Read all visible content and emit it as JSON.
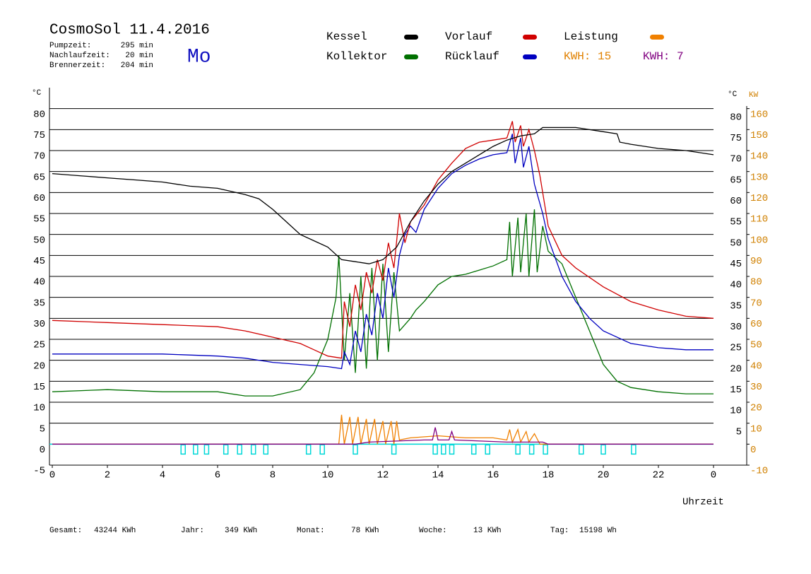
{
  "chart_data": {
    "type": "line",
    "title": "CosmoSol 11.4.2016",
    "weekday": "Mo",
    "weekday_color": "#1010c0",
    "stats": [
      {
        "label": "Pumpzeit:",
        "value": "295 min"
      },
      {
        "label": "Nachlaufzeit:",
        "value": "20 min"
      },
      {
        "label": "Brennerzeit:",
        "value": "204 min"
      }
    ],
    "y_unit": "°C",
    "y2_unit": "KW",
    "x_label": "Uhrzeit",
    "xlim": [
      0,
      24
    ],
    "xticks": [
      0,
      2,
      4,
      6,
      8,
      10,
      12,
      14,
      16,
      18,
      20,
      22,
      {
        "value": 24,
        "label": "0"
      }
    ],
    "ylim": [
      -5,
      85
    ],
    "yticks": [
      -5,
      0,
      5,
      10,
      15,
      20,
      25,
      30,
      35,
      40,
      45,
      50,
      55,
      60,
      65,
      70,
      75,
      80
    ],
    "y2lim": [
      -10,
      170
    ],
    "y2ticks": [
      -10,
      0,
      10,
      20,
      30,
      40,
      50,
      60,
      70,
      80,
      90,
      100,
      110,
      120,
      130,
      140,
      150,
      160
    ],
    "grid": true,
    "series": [
      {
        "name": "Kessel",
        "color": "#000000",
        "x": [
          0,
          1,
          2,
          3,
          4,
          5,
          6,
          7,
          7.5,
          8,
          8.5,
          9,
          9.5,
          10,
          10.5,
          11,
          11.5,
          12,
          12.5,
          13,
          13.5,
          14,
          14.5,
          15,
          15.5,
          16,
          16.5,
          17,
          17.5,
          17.8,
          18,
          19,
          20,
          20.5,
          20.6,
          21,
          22,
          23,
          24
        ],
        "values": [
          64.5,
          64,
          63.5,
          63,
          62.5,
          61.5,
          61,
          59.5,
          58.5,
          56,
          53,
          50,
          48.5,
          47,
          44,
          43.5,
          43,
          44,
          47,
          53,
          58,
          62,
          65,
          67,
          69,
          71,
          72.5,
          73.5,
          74,
          75.5,
          75.5,
          75.5,
          74.5,
          74,
          72,
          71.5,
          70.5,
          70,
          69
        ]
      },
      {
        "name": "Vorlauf",
        "color": "#d00000",
        "x": [
          0,
          2,
          4,
          6,
          7,
          8,
          9,
          9.5,
          10,
          10.5,
          10.6,
          10.8,
          11,
          11.2,
          11.4,
          11.6,
          11.8,
          12,
          12.2,
          12.4,
          12.6,
          12.8,
          13,
          13.5,
          14,
          14.5,
          15,
          15.5,
          16,
          16.5,
          16.7,
          16.8,
          17,
          17.1,
          17.3,
          17.5,
          17.7,
          18,
          18.5,
          19,
          20,
          21,
          22,
          23,
          24
        ],
        "values": [
          29.5,
          29,
          28.5,
          28,
          27,
          25.5,
          24,
          22.5,
          21,
          20.5,
          34,
          28,
          38,
          32,
          41,
          36,
          44,
          39,
          48,
          42,
          55,
          48,
          53,
          57,
          63,
          67,
          70.5,
          72,
          72.5,
          73,
          77,
          72,
          76,
          71,
          75,
          70,
          64,
          52,
          45,
          42,
          37.5,
          34,
          32,
          30.5,
          30
        ]
      },
      {
        "name": "Leistung",
        "color": "#f08000",
        "axis": "y2",
        "x": [
          0,
          10.4,
          10.5,
          10.6,
          10.8,
          10.9,
          11.1,
          11.2,
          11.4,
          11.5,
          11.7,
          11.8,
          12,
          12.1,
          12.3,
          12.4,
          12.5,
          12.6,
          13,
          14,
          15,
          16,
          16.5,
          16.6,
          16.7,
          16.9,
          17,
          17.2,
          17.3,
          17.5,
          17.7,
          24
        ],
        "values": [
          0,
          0,
          14,
          0,
          13,
          0,
          13,
          0,
          12,
          0,
          12,
          0,
          11,
          0,
          11,
          0,
          11,
          2,
          3,
          4,
          3,
          3,
          2,
          7,
          1,
          7,
          1,
          6,
          1,
          5,
          0,
          0
        ]
      },
      {
        "name": "Kollektor",
        "color": "#007000",
        "x": [
          0,
          2,
          4,
          6,
          7,
          8,
          9,
          9.5,
          10,
          10.3,
          10.4,
          10.6,
          10.8,
          11,
          11.2,
          11.4,
          11.6,
          11.8,
          12,
          12.2,
          12.4,
          12.6,
          13,
          13.2,
          13.5,
          14,
          14.5,
          15,
          15.5,
          16,
          16.5,
          16.6,
          16.7,
          16.9,
          17,
          17.2,
          17.3,
          17.5,
          17.6,
          17.8,
          18,
          18.5,
          19,
          19.5,
          20,
          20.5,
          21,
          22,
          23,
          24
        ],
        "values": [
          12.5,
          13,
          12.5,
          12.5,
          11.5,
          11.5,
          13,
          17,
          25,
          35,
          45,
          20,
          36,
          17,
          40,
          18,
          42,
          20,
          43,
          22,
          41,
          27,
          30,
          32,
          34,
          38,
          40,
          40.5,
          41.5,
          42.5,
          44,
          53,
          40,
          54,
          41,
          55,
          40,
          56,
          41,
          52,
          46,
          43,
          35,
          27,
          19,
          15,
          13.5,
          12.5,
          12,
          12
        ]
      },
      {
        "name": "Rücklauf",
        "color": "#0000c0",
        "x": [
          0,
          4,
          6,
          7,
          8,
          9,
          10,
          10.5,
          10.6,
          10.8,
          11,
          11.2,
          11.4,
          11.6,
          11.8,
          12,
          12.2,
          12.4,
          12.6,
          12.8,
          13,
          13.2,
          13.5,
          14,
          14.5,
          15,
          15.5,
          16,
          16.5,
          16.7,
          16.8,
          17,
          17.1,
          17.3,
          17.5,
          17.8,
          18,
          18.5,
          19,
          19.5,
          20,
          21,
          22,
          23,
          24
        ],
        "values": [
          21.5,
          21.5,
          21,
          20.5,
          19.5,
          19,
          18.5,
          18,
          22,
          19,
          27,
          22,
          31,
          26,
          36,
          30,
          42,
          35,
          45,
          50,
          52,
          50.5,
          56,
          61,
          64.5,
          66.5,
          68,
          69,
          69.5,
          74,
          67,
          73,
          66,
          71,
          62,
          55,
          49,
          40,
          34,
          30,
          27,
          24,
          23,
          22.5,
          22.5
        ]
      },
      {
        "color": "#800080",
        "axis": "y2",
        "x": [
          0,
          11,
          11.5,
          13.5,
          13.8,
          13.9,
          14,
          14.4,
          14.5,
          14.6,
          16.5,
          17.8,
          18,
          24
        ],
        "values": [
          0,
          0,
          1,
          2,
          2,
          8,
          2,
          2,
          6,
          2,
          1,
          1,
          0,
          0
        ]
      }
    ],
    "kwh_labels": [
      {
        "text": "KWH: 15",
        "color": "#e08000"
      },
      {
        "text": "KWH: 7",
        "color": "#800080"
      }
    ],
    "burner": {
      "color": "#00d8d8",
      "x": [
        4.75,
        5.2,
        5.6,
        6.3,
        6.8,
        7.3,
        7.75,
        9.3,
        9.8,
        11,
        12.4,
        13.9,
        14.2,
        14.5,
        15.3,
        15.8,
        16.9,
        17.4,
        17.9,
        19.2,
        20,
        21.1
      ]
    },
    "totals": [
      {
        "label": "Gesamt:",
        "value": "43244 KWh"
      },
      {
        "label": "Jahr:",
        "value": "349 KWh"
      },
      {
        "label": "Monat:",
        "value": "78 KWh"
      },
      {
        "label": "Woche:",
        "value": "13 KWh"
      },
      {
        "label": "Tag:",
        "value": "15198 Wh"
      }
    ]
  }
}
